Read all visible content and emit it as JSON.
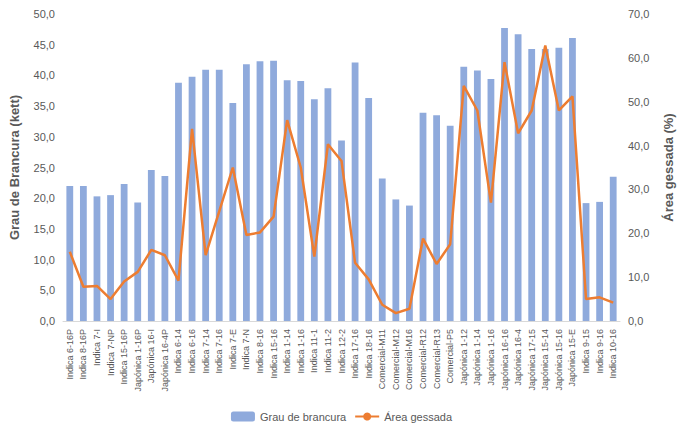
{
  "chart_data": {
    "type": "bar",
    "y_label": "Grau de Brancura (kett)",
    "y2_label": "Área gessada (%)",
    "categories": [
      "Indica 6-16P",
      "Indica 8-16P",
      "Indica 7-I",
      "Indica 7-NP",
      "Indica 15-16P",
      "Japónica 1-16P",
      "Japónica 16-I",
      "Japónica 16-4P",
      "Indica 6-14",
      "Indica 6-16",
      "Indica 7-14",
      "Indica 7-16",
      "Indica 7-E",
      "Indica 7-N",
      "Indica 8-16",
      "Indica 15-16",
      "Indica 1-14",
      "Indica 1-16",
      "Indica 11-1",
      "Indica 11-2",
      "Indica 12-2",
      "Indica 17-16",
      "Indica 18-16",
      "Comercial-M11",
      "Comercial-M12",
      "Comercial-M16",
      "Comercial-R12",
      "Comercial-R13",
      "Comercial-P5",
      "Japónica 1-12",
      "Japónica 1-14",
      "Japónica 1-16",
      "Japónica 16-16",
      "Japónica 16-4",
      "Japónica 17-15",
      "Japónica 15-14",
      "Japónica 15-16",
      "Japónica 15-E",
      "Indica 9-15",
      "Indica 9-16",
      "Indica 10-16"
    ],
    "series": [
      {
        "name": "Grau de brancura",
        "type": "bar",
        "color": "#8faadc",
        "values": [
          22.0,
          22.0,
          20.3,
          20.5,
          22.3,
          19.3,
          24.6,
          23.6,
          38.8,
          39.8,
          40.9,
          40.9,
          35.5,
          41.8,
          42.3,
          42.4,
          39.2,
          39.1,
          36.1,
          37.9,
          29.4,
          42.1,
          36.3,
          23.2,
          19.8,
          18.8,
          33.9,
          33.5,
          31.8,
          41.4,
          40.8,
          39.4,
          47.7,
          46.7,
          44.3,
          44.3,
          44.5,
          46.1,
          19.2,
          19.4,
          23.5
        ]
      },
      {
        "name": "Área gessada",
        "type": "line",
        "color": "#ed7d31",
        "axis": "y2",
        "marker": "none",
        "values": [
          15.8,
          7.8,
          8.0,
          5.0,
          9.0,
          11.2,
          16.2,
          15.0,
          9.2,
          43.8,
          15.0,
          25.0,
          35.0,
          19.6,
          20.2,
          23.8,
          45.8,
          35.0,
          14.7,
          40.3,
          36.5,
          13.3,
          9.5,
          3.7,
          1.8,
          2.8,
          18.8,
          13.0,
          17.5,
          53.6,
          48.0,
          27.0,
          59.0,
          42.8,
          48.0,
          62.8,
          48.0,
          51.2,
          5.0,
          5.4,
          4.2
        ]
      }
    ],
    "ylim": [
      0,
      50
    ],
    "yticks": [
      {
        "value": 0,
        "label": "0,0"
      },
      {
        "value": 5,
        "label": "5,0"
      },
      {
        "value": 10,
        "label": "10,0"
      },
      {
        "value": 15,
        "label": "15,0"
      },
      {
        "value": 20,
        "label": "20,0"
      },
      {
        "value": 25,
        "label": "25,0"
      },
      {
        "value": 30,
        "label": "30,0"
      },
      {
        "value": 35,
        "label": "35,0"
      },
      {
        "value": 40,
        "label": "40,0"
      },
      {
        "value": 45,
        "label": "45,0"
      },
      {
        "value": 50,
        "label": "50,0"
      }
    ],
    "y2lim": [
      0,
      70
    ],
    "y2ticks": [
      {
        "value": 0,
        "label": "0,0"
      },
      {
        "value": 10,
        "label": "10,0"
      },
      {
        "value": 20,
        "label": "20,0"
      },
      {
        "value": 30,
        "label": "30,0"
      },
      {
        "value": 40,
        "label": "40,0"
      },
      {
        "value": 50,
        "label": "50,0"
      },
      {
        "value": 60,
        "label": "60,0"
      },
      {
        "value": 70,
        "label": "70,0"
      }
    ],
    "grid": false,
    "legend": "bottom"
  }
}
